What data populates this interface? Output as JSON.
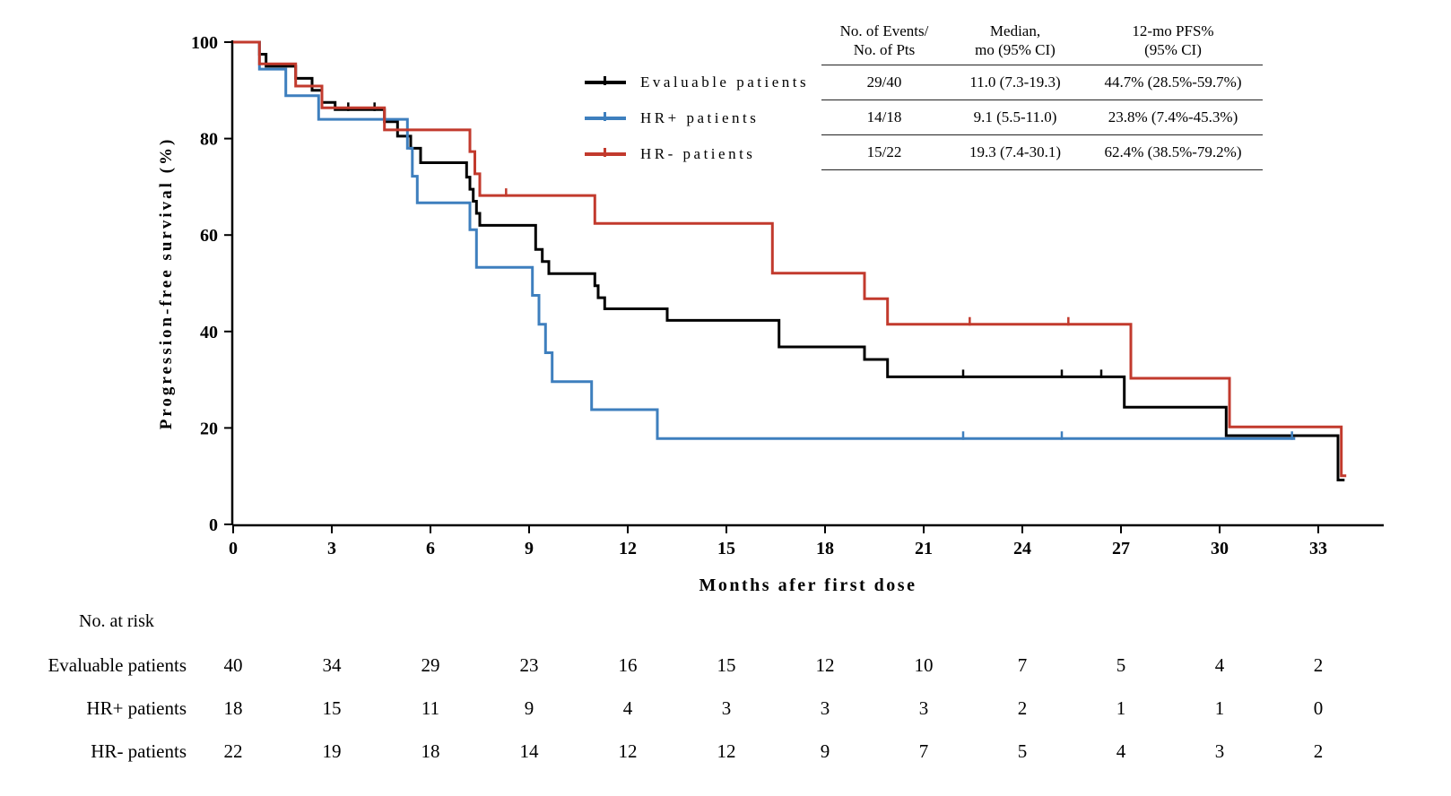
{
  "chart_data": {
    "type": "line",
    "variant": "kaplan-meier-step",
    "title": "",
    "xlabel": "Months afer first dose",
    "ylabel": "Progression-free survival (%)",
    "xlim": [
      0,
      35
    ],
    "ylim": [
      0,
      100
    ],
    "xticks": [
      0,
      3,
      6,
      9,
      12,
      15,
      18,
      21,
      24,
      27,
      30,
      33
    ],
    "yticks": [
      0,
      20,
      40,
      60,
      80,
      100
    ],
    "grid": false,
    "legend_position": "upper-center-left",
    "series": [
      {
        "id": "evaluable",
        "name": "Evaluable patients",
        "color": "#000000",
        "points": [
          [
            0,
            100
          ],
          [
            0.8,
            97.5
          ],
          [
            1.0,
            95
          ],
          [
            1.9,
            92.5
          ],
          [
            2.4,
            90
          ],
          [
            2.7,
            87.5
          ],
          [
            3.1,
            86
          ],
          [
            4.6,
            83.5
          ],
          [
            5.0,
            80.5
          ],
          [
            5.4,
            78
          ],
          [
            5.7,
            75
          ],
          [
            7.1,
            72
          ],
          [
            7.2,
            69.5
          ],
          [
            7.3,
            67
          ],
          [
            7.4,
            64.5
          ],
          [
            7.5,
            62
          ],
          [
            9.2,
            57
          ],
          [
            9.4,
            54.5
          ],
          [
            9.6,
            52
          ],
          [
            11.0,
            49.5
          ],
          [
            11.1,
            47
          ],
          [
            11.3,
            44.7
          ],
          [
            13.2,
            42.3
          ],
          [
            16.6,
            36.8
          ],
          [
            19.2,
            34.2
          ],
          [
            19.9,
            30.6
          ],
          [
            27.1,
            24.3
          ],
          [
            30.2,
            18.4
          ],
          [
            33.6,
            9.2
          ]
        ],
        "censor_marks": [
          [
            3.5,
            86
          ],
          [
            4.3,
            86
          ],
          [
            22.2,
            30.6
          ],
          [
            25.2,
            30.6
          ],
          [
            26.4,
            30.6
          ]
        ],
        "end": 33.8
      },
      {
        "id": "hr-positive",
        "name": "HR+ patients",
        "color": "#3e7fbe",
        "points": [
          [
            0,
            100
          ],
          [
            0.8,
            94.4
          ],
          [
            1.6,
            88.9
          ],
          [
            2.6,
            84
          ],
          [
            5.3,
            78
          ],
          [
            5.45,
            72.2
          ],
          [
            5.6,
            66.7
          ],
          [
            7.2,
            61.1
          ],
          [
            7.4,
            53.3
          ],
          [
            9.1,
            47.5
          ],
          [
            9.3,
            41.5
          ],
          [
            9.5,
            35.6
          ],
          [
            9.7,
            29.6
          ],
          [
            10.9,
            23.8
          ],
          [
            12.9,
            17.8
          ]
        ],
        "censor_marks": [
          [
            22.2,
            17.8
          ],
          [
            25.2,
            17.8
          ],
          [
            32.2,
            17.8
          ]
        ],
        "end": 32.3
      },
      {
        "id": "hr-negative",
        "name": "HR- patients",
        "color": "#c23a2d",
        "points": [
          [
            0,
            100
          ],
          [
            0.8,
            95.5
          ],
          [
            1.9,
            90.9
          ],
          [
            2.7,
            86.4
          ],
          [
            4.6,
            81.8
          ],
          [
            7.2,
            77.3
          ],
          [
            7.35,
            72.7
          ],
          [
            7.5,
            68.2
          ],
          [
            11.0,
            62.4
          ],
          [
            16.4,
            52.1
          ],
          [
            19.2,
            46.8
          ],
          [
            19.9,
            41.5
          ],
          [
            27.3,
            30.3
          ],
          [
            30.3,
            20.2
          ],
          [
            33.7,
            10.1
          ]
        ],
        "censor_marks": [
          [
            8.3,
            68.2
          ],
          [
            22.4,
            41.5
          ],
          [
            25.4,
            41.5
          ]
        ],
        "end": 33.85
      }
    ]
  },
  "legend": {
    "items": [
      {
        "label": "Evaluable patients"
      },
      {
        "label": "HR+ patients"
      },
      {
        "label": "HR- patients"
      }
    ]
  },
  "stats_table": {
    "headers": [
      [
        "No. of Events/",
        "No. of Pts"
      ],
      [
        "Median,",
        "mo (95% CI)"
      ],
      [
        "12-mo PFS%",
        "(95% CI)"
      ]
    ],
    "rows": [
      {
        "events": "29/40",
        "median": "11.0 (7.3-19.3)",
        "pfs": "44.7% (28.5%-59.7%)"
      },
      {
        "events": "14/18",
        "median": "9.1 (5.5-11.0)",
        "pfs": "23.8% (7.4%-45.3%)"
      },
      {
        "events": "15/22",
        "median": "19.3 (7.4-30.1)",
        "pfs": "62.4% (38.5%-79.2%)"
      }
    ]
  },
  "risk_table": {
    "title": "No. at risk",
    "rows": [
      {
        "label": "Evaluable patients",
        "values": [
          "40",
          "34",
          "29",
          "23",
          "16",
          "15",
          "12",
          "10",
          "7",
          "5",
          "4",
          "2"
        ]
      },
      {
        "label": "HR+ patients",
        "values": [
          "18",
          "15",
          "11",
          "9",
          "4",
          "3",
          "3",
          "3",
          "2",
          "1",
          "1",
          "0"
        ]
      },
      {
        "label": "HR- patients",
        "values": [
          "22",
          "19",
          "18",
          "14",
          "12",
          "12",
          "9",
          "7",
          "5",
          "4",
          "3",
          "2"
        ]
      }
    ]
  }
}
